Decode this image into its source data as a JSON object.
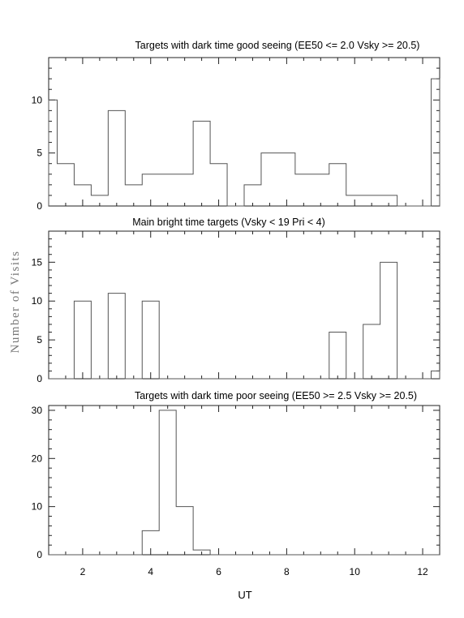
{
  "chart_data": [
    {
      "type": "histogram",
      "title": "Targets with dark time good seeing (EE50 <= 2.0 Vsky >= 20.5)",
      "bin_edges": [
        1.0,
        1.25,
        1.75,
        2.25,
        2.75,
        3.25,
        3.75,
        4.25,
        4.75,
        5.25,
        5.75,
        6.25,
        6.75,
        7.25,
        7.75,
        8.25,
        8.75,
        9.25,
        9.75,
        10.25,
        10.75,
        11.25,
        11.75,
        12.25,
        12.5
      ],
      "values": [
        10,
        4,
        2,
        1,
        9,
        2,
        3,
        3,
        3,
        8,
        4,
        0,
        2,
        5,
        5,
        3,
        3,
        4,
        1,
        1,
        1,
        0,
        0,
        12
      ],
      "ylim": [
        0,
        14
      ],
      "yticks": [
        "0",
        "5",
        "10"
      ],
      "ytick_values": [
        0,
        5,
        10
      ]
    },
    {
      "type": "histogram",
      "title": "Main bright time targets (Vsky < 19 Pri < 4)",
      "bin_edges": [
        1.0,
        1.25,
        1.75,
        2.25,
        2.75,
        3.25,
        3.75,
        4.25,
        4.75,
        5.25,
        5.75,
        6.25,
        6.75,
        7.25,
        7.75,
        8.25,
        8.75,
        9.25,
        9.75,
        10.25,
        10.75,
        11.25,
        11.75,
        12.25,
        12.5
      ],
      "values": [
        0,
        0,
        10,
        0,
        11,
        0,
        10,
        0,
        0,
        0,
        0,
        0,
        0,
        0,
        0,
        0,
        0,
        6,
        0,
        7,
        15,
        0,
        0,
        1
      ],
      "ylim": [
        0,
        19
      ],
      "yticks": [
        "0",
        "5",
        "10",
        "15"
      ],
      "ytick_values": [
        0,
        5,
        10,
        15
      ]
    },
    {
      "type": "histogram",
      "title": "Targets with dark time poor seeing (EE50 >= 2.5 Vsky >= 20.5)",
      "bin_edges": [
        1.0,
        1.25,
        1.75,
        2.25,
        2.75,
        3.25,
        3.75,
        4.25,
        4.75,
        5.25,
        5.75,
        6.25,
        6.75,
        7.25,
        7.75,
        8.25,
        8.75,
        9.25,
        9.75,
        10.25,
        10.75,
        11.25,
        11.75,
        12.25,
        12.5
      ],
      "values": [
        0,
        0,
        0,
        0,
        0,
        0,
        5,
        30,
        10,
        1,
        0,
        0,
        0,
        0,
        0,
        0,
        0,
        0,
        0,
        0,
        0,
        0,
        0,
        0
      ],
      "ylim": [
        0,
        31
      ],
      "yticks": [
        "0",
        "10",
        "20",
        "30"
      ],
      "ytick_values": [
        0,
        10,
        20,
        30
      ]
    }
  ],
  "x_axis": {
    "label": "UT",
    "xlim": [
      1.0,
      12.5
    ],
    "ticks": [
      "2",
      "4",
      "6",
      "8",
      "10",
      "12"
    ],
    "tick_values": [
      2,
      4,
      6,
      8,
      10,
      12
    ],
    "minor_step": 0.5
  },
  "y_axis": {
    "label": "Number of Visits"
  },
  "colors": {
    "histogram_line": "#555555",
    "frame": "#222222",
    "y_label": "#777777"
  }
}
